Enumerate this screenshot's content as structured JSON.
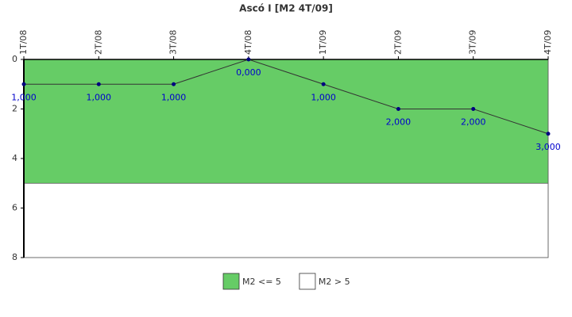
{
  "chart_data": {
    "type": "line",
    "title": "Ascó I [M2 4T/09]",
    "categories": [
      "1T/08",
      "2T/08",
      "3T/08",
      "4T/08",
      "1T/09",
      "2T/09",
      "3T/09",
      "4T/09"
    ],
    "values": [
      1,
      1,
      1,
      0,
      1,
      2,
      2,
      3
    ],
    "value_labels": [
      "1,000",
      "1,000",
      "1,000",
      "0,000",
      "1,000",
      "2,000",
      "2,000",
      "3,000"
    ],
    "color": "#333333",
    "marker_color": "#000080",
    "label_color": "#0000cc",
    "ylim": [
      0,
      8
    ],
    "yticks": [
      0,
      2,
      4,
      6,
      8
    ],
    "y_inverted": true,
    "bands": [
      {
        "name": "M2 <= 5",
        "color": "#66cc66",
        "range": [
          0,
          5
        ]
      },
      {
        "name": "M2 > 5",
        "color": "#ffffff",
        "range": [
          5,
          8
        ]
      }
    ]
  }
}
